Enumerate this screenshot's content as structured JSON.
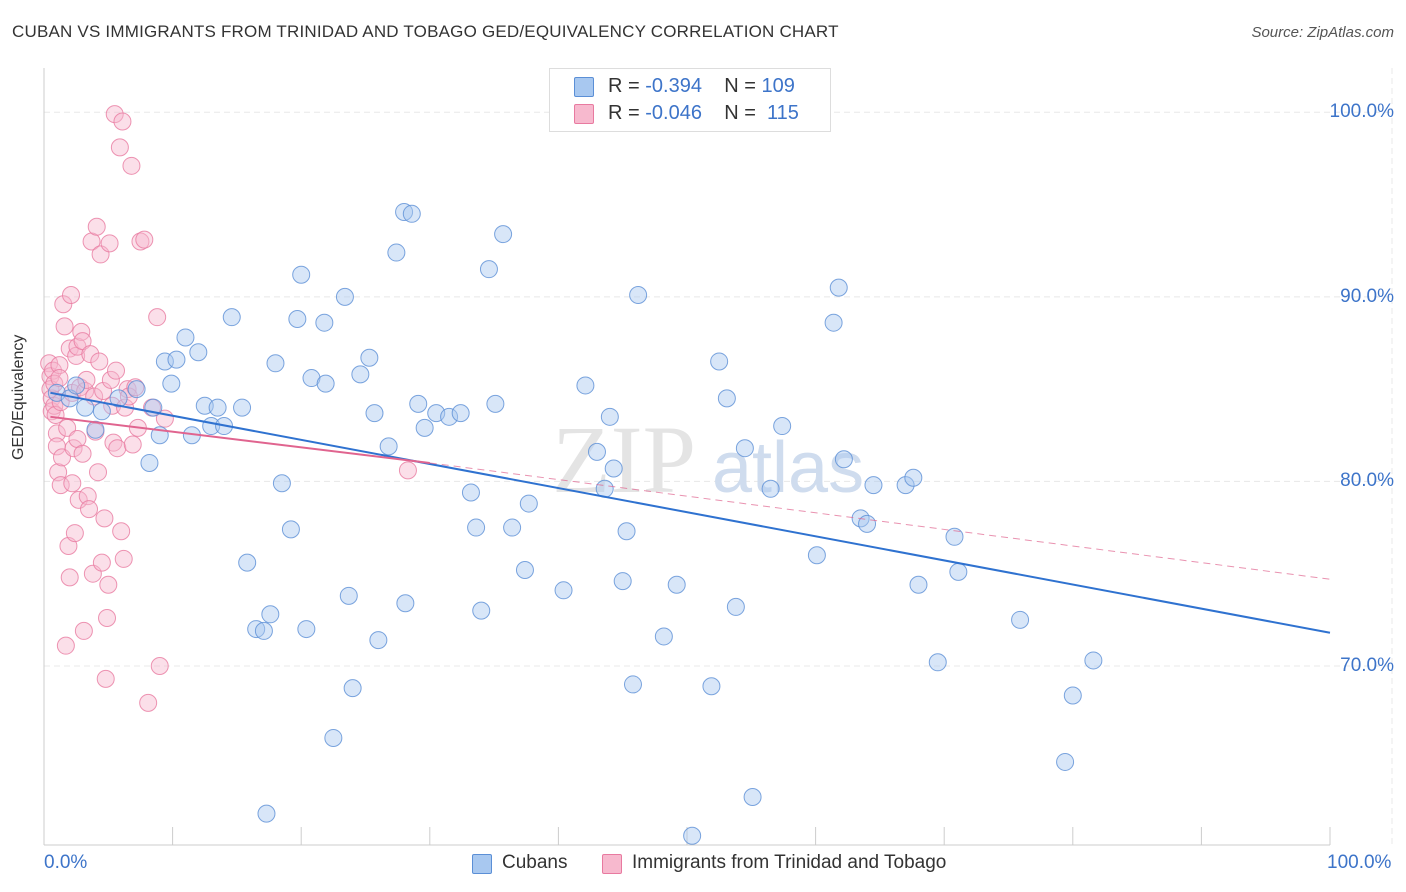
{
  "title": "CUBAN VS IMMIGRANTS FROM TRINIDAD AND TOBAGO GED/EQUIVALENCY CORRELATION CHART",
  "source": "Source: ZipAtlas.com",
  "watermark": {
    "zip": "ZIP",
    "atlas": "atlas"
  },
  "legend": {
    "cubans": {
      "r_label": "R = ",
      "r_value": "-0.394",
      "n_label": "N = ",
      "n_value": "109"
    },
    "trinidad": {
      "r_label": "R = ",
      "r_value": "-0.046",
      "n_label": "N = ",
      "n_value": "115"
    }
  },
  "colors": {
    "cubans_fill": "#a8c8f0",
    "cubans_stroke": "#5b8fd6",
    "cubans_line": "#2f72d0",
    "trinidad_fill": "#f7b9ce",
    "trinidad_stroke": "#e87aa0",
    "trinidad_line": "#e0648f",
    "tick_text": "#3d74c9",
    "grid": "#e8e8e8"
  },
  "chart_data": {
    "type": "scatter",
    "title": "CUBAN VS IMMIGRANTS FROM TRINIDAD AND TOBAGO GED/EQUIVALENCY CORRELATION CHART",
    "xlabel": "",
    "ylabel": "GED/Equivalency",
    "xlim": [
      0,
      100
    ],
    "ylim": [
      60.3,
      102.4
    ],
    "x_tick_labels": [
      "0.0%",
      "100.0%"
    ],
    "y_ticks": [
      70,
      80,
      90,
      100
    ],
    "y_tick_labels": [
      "70.0%",
      "80.0%",
      "90.0%",
      "100.0%"
    ],
    "grid": true,
    "legend_position": "top-center",
    "series": [
      {
        "name": "Cubans",
        "trend": {
          "x": [
            0.5,
            100
          ],
          "y": [
            84.8,
            71.8
          ]
        },
        "points": [
          [
            1.0,
            84.8
          ],
          [
            2.0,
            84.5
          ],
          [
            2.5,
            85.2
          ],
          [
            3.2,
            84.0
          ],
          [
            4.0,
            82.8
          ],
          [
            4.5,
            83.8
          ],
          [
            5.8,
            84.5
          ],
          [
            7.2,
            85.0
          ],
          [
            8.5,
            84.0
          ],
          [
            9.0,
            82.5
          ],
          [
            8.2,
            81.0
          ],
          [
            9.4,
            86.5
          ],
          [
            9.9,
            85.3
          ],
          [
            10.3,
            86.6
          ],
          [
            11.0,
            87.8
          ],
          [
            12.0,
            87.0
          ],
          [
            11.5,
            82.5
          ],
          [
            12.5,
            84.1
          ],
          [
            13.0,
            83.0
          ],
          [
            13.5,
            84.0
          ],
          [
            14.0,
            83.0
          ],
          [
            14.6,
            88.9
          ],
          [
            15.4,
            84.0
          ],
          [
            15.8,
            75.6
          ],
          [
            16.5,
            72.0
          ],
          [
            17.1,
            71.9
          ],
          [
            17.3,
            62.0
          ],
          [
            17.6,
            72.8
          ],
          [
            18.0,
            86.4
          ],
          [
            18.5,
            79.9
          ],
          [
            19.2,
            77.4
          ],
          [
            19.7,
            88.8
          ],
          [
            20.0,
            91.2
          ],
          [
            20.4,
            72.0
          ],
          [
            20.8,
            85.6
          ],
          [
            21.8,
            88.6
          ],
          [
            21.9,
            85.3
          ],
          [
            22.5,
            66.1
          ],
          [
            23.4,
            90.0
          ],
          [
            23.7,
            73.8
          ],
          [
            24.0,
            68.8
          ],
          [
            24.6,
            85.8
          ],
          [
            25.3,
            86.7
          ],
          [
            25.7,
            83.7
          ],
          [
            26.0,
            71.4
          ],
          [
            26.8,
            81.9
          ],
          [
            27.4,
            92.4
          ],
          [
            28.0,
            94.6
          ],
          [
            28.1,
            73.4
          ],
          [
            28.6,
            94.5
          ],
          [
            29.1,
            84.2
          ],
          [
            29.6,
            82.9
          ],
          [
            30.5,
            83.7
          ],
          [
            31.5,
            83.5
          ],
          [
            32.4,
            83.7
          ],
          [
            33.2,
            79.4
          ],
          [
            33.6,
            77.5
          ],
          [
            34.0,
            73.0
          ],
          [
            34.6,
            91.5
          ],
          [
            35.1,
            84.2
          ],
          [
            35.7,
            93.4
          ],
          [
            36.4,
            77.5
          ],
          [
            37.4,
            75.2
          ],
          [
            37.7,
            78.8
          ],
          [
            40.4,
            74.1
          ],
          [
            42.1,
            85.2
          ],
          [
            43.0,
            81.6
          ],
          [
            43.6,
            79.6
          ],
          [
            44.0,
            83.5
          ],
          [
            44.3,
            80.7
          ],
          [
            45.0,
            74.6
          ],
          [
            45.3,
            77.3
          ],
          [
            45.8,
            69.0
          ],
          [
            46.2,
            90.1
          ],
          [
            48.2,
            71.6
          ],
          [
            49.2,
            74.4
          ],
          [
            50.4,
            60.8
          ],
          [
            51.9,
            68.9
          ],
          [
            52.5,
            86.5
          ],
          [
            53.1,
            84.5
          ],
          [
            53.8,
            73.2
          ],
          [
            54.5,
            81.8
          ],
          [
            55.1,
            62.9
          ],
          [
            56.5,
            79.6
          ],
          [
            57.4,
            83.0
          ],
          [
            60.1,
            76.0
          ],
          [
            61.4,
            88.6
          ],
          [
            61.8,
            90.5
          ],
          [
            62.2,
            81.2
          ],
          [
            63.5,
            78.0
          ],
          [
            64.0,
            77.7
          ],
          [
            64.5,
            79.8
          ],
          [
            67.0,
            79.8
          ],
          [
            67.6,
            80.2
          ],
          [
            68.0,
            74.4
          ],
          [
            69.5,
            70.2
          ],
          [
            70.8,
            77.0
          ],
          [
            71.1,
            75.1
          ],
          [
            75.9,
            72.5
          ],
          [
            79.4,
            64.8
          ],
          [
            80.0,
            68.4
          ],
          [
            81.6,
            70.3
          ]
        ]
      },
      {
        "name": "Immigrants from Trinidad and Tobago",
        "trend_solid": {
          "x": [
            0.5,
            30
          ],
          "y": [
            83.5,
            81.0
          ]
        },
        "trend_dashed": {
          "x": [
            30,
            100
          ],
          "y": [
            81.0,
            74.7
          ]
        },
        "points": [
          [
            0.4,
            86.4
          ],
          [
            0.5,
            85.7
          ],
          [
            0.5,
            85.0
          ],
          [
            0.6,
            84.5
          ],
          [
            0.6,
            83.8
          ],
          [
            0.7,
            86.0
          ],
          [
            0.8,
            85.3
          ],
          [
            0.8,
            84.1
          ],
          [
            0.9,
            83.6
          ],
          [
            1.0,
            82.6
          ],
          [
            1.0,
            81.9
          ],
          [
            1.1,
            80.5
          ],
          [
            1.2,
            86.3
          ],
          [
            1.2,
            85.6
          ],
          [
            1.3,
            84.3
          ],
          [
            1.3,
            79.8
          ],
          [
            1.4,
            81.3
          ],
          [
            1.5,
            89.6
          ],
          [
            1.6,
            88.4
          ],
          [
            1.7,
            71.1
          ],
          [
            1.8,
            82.9
          ],
          [
            1.9,
            76.5
          ],
          [
            2.0,
            74.8
          ],
          [
            2.0,
            87.2
          ],
          [
            2.1,
            90.1
          ],
          [
            2.2,
            84.8
          ],
          [
            2.2,
            79.9
          ],
          [
            2.3,
            81.8
          ],
          [
            2.4,
            77.2
          ],
          [
            2.5,
            86.8
          ],
          [
            2.6,
            87.3
          ],
          [
            2.6,
            82.3
          ],
          [
            2.7,
            79.0
          ],
          [
            2.8,
            85.1
          ],
          [
            2.9,
            88.1
          ],
          [
            3.0,
            87.6
          ],
          [
            3.0,
            81.5
          ],
          [
            3.1,
            71.9
          ],
          [
            3.2,
            84.9
          ],
          [
            3.3,
            85.5
          ],
          [
            3.4,
            79.2
          ],
          [
            3.5,
            78.5
          ],
          [
            3.6,
            86.9
          ],
          [
            3.7,
            93.0
          ],
          [
            3.8,
            75.0
          ],
          [
            3.9,
            84.6
          ],
          [
            4.0,
            82.7
          ],
          [
            4.1,
            93.8
          ],
          [
            4.2,
            80.5
          ],
          [
            4.3,
            86.5
          ],
          [
            4.4,
            92.3
          ],
          [
            4.5,
            75.6
          ],
          [
            4.6,
            84.9
          ],
          [
            4.7,
            78.0
          ],
          [
            4.8,
            69.3
          ],
          [
            4.9,
            72.6
          ],
          [
            5.0,
            74.4
          ],
          [
            5.1,
            92.9
          ],
          [
            5.2,
            85.5
          ],
          [
            5.3,
            84.1
          ],
          [
            5.4,
            82.1
          ],
          [
            5.5,
            99.9
          ],
          [
            5.6,
            86.0
          ],
          [
            5.7,
            81.8
          ],
          [
            5.9,
            98.1
          ],
          [
            6.0,
            77.3
          ],
          [
            6.1,
            99.5
          ],
          [
            6.2,
            75.8
          ],
          [
            6.3,
            84.0
          ],
          [
            6.5,
            85.0
          ],
          [
            6.6,
            84.6
          ],
          [
            6.8,
            97.1
          ],
          [
            6.9,
            82.0
          ],
          [
            7.1,
            85.1
          ],
          [
            7.3,
            82.9
          ],
          [
            7.5,
            93.0
          ],
          [
            7.8,
            93.1
          ],
          [
            8.1,
            68.0
          ],
          [
            8.4,
            84.0
          ],
          [
            8.8,
            88.9
          ],
          [
            9.0,
            70.0
          ],
          [
            9.4,
            83.4
          ],
          [
            28.3,
            80.6
          ]
        ]
      }
    ]
  }
}
